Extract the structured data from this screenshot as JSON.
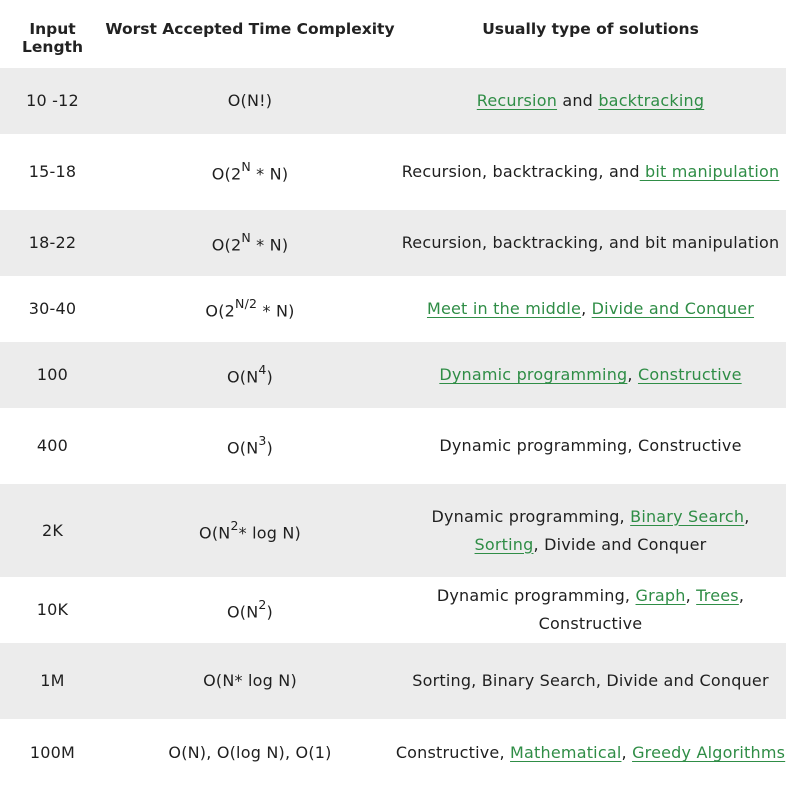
{
  "headers": [
    "Input Length",
    "Worst Accepted Time Complexity",
    "Usually type of solutions"
  ],
  "rows": [
    {
      "len": "10 -12",
      "cx": {
        "base": "O(N!)",
        "sup": "",
        "tail": ""
      },
      "sol": [
        {
          "t": "Recursion",
          "link": true
        },
        {
          "t": " and ",
          "link": false
        },
        {
          "t": "backtracking",
          "link": true
        }
      ]
    },
    {
      "len": "15-18",
      "cx": {
        "base": "O(2",
        "sup": "N",
        "tail": " * N)"
      },
      "sol": [
        {
          "t": "Recursion, backtracking, and",
          "link": false
        },
        {
          "t": " bit manipulation",
          "link": true
        }
      ]
    },
    {
      "len": "18-22",
      "cx": {
        "base": "O(2",
        "sup": "N",
        "tail": " * N)"
      },
      "sol": [
        {
          "t": "Recursion, backtracking, and bit manipulation",
          "link": false
        }
      ]
    },
    {
      "len": "30-40",
      "cx": {
        "base": "O(2",
        "sup": "N/2",
        "tail": " * N)"
      },
      "sol": [
        {
          "t": "Meet in the middle",
          "link": true
        },
        {
          "t": ", ",
          "link": false
        },
        {
          "t": "Divide and Conquer",
          "link": true
        }
      ]
    },
    {
      "len": "100",
      "cx": {
        "base": "O(N",
        "sup": "4",
        "tail": ")"
      },
      "sol": [
        {
          "t": "Dynamic programming",
          "link": true
        },
        {
          "t": ", ",
          "link": false
        },
        {
          "t": "Constructive",
          "link": true
        }
      ]
    },
    {
      "len": "400",
      "cx": {
        "base": "O(N",
        "sup": "3",
        "tail": ")"
      },
      "sol": [
        {
          "t": "Dynamic programming, Constructive",
          "link": false
        }
      ]
    },
    {
      "len": "2K",
      "cx": {
        "base": "O(N",
        "sup": "2",
        "tail": "* log N)"
      },
      "sol": [
        {
          "t": "Dynamic programming, ",
          "link": false
        },
        {
          "t": "Binary Search",
          "link": true
        },
        {
          "t": ", ",
          "link": false
        },
        {
          "t": "Sorting",
          "link": true
        },
        {
          "t": ", Divide and Conquer",
          "link": false
        }
      ]
    },
    {
      "len": "10K",
      "cx": {
        "base": "O(N",
        "sup": "2",
        "tail": ")"
      },
      "sol": [
        {
          "t": "Dynamic programming, ",
          "link": false
        },
        {
          "t": "Graph",
          "link": true
        },
        {
          "t": ", ",
          "link": false
        },
        {
          "t": "Trees",
          "link": true
        },
        {
          "t": ", Constructive",
          "link": false
        }
      ]
    },
    {
      "len": "1M",
      "cx": {
        "base": "O(N* log N)",
        "sup": "",
        "tail": ""
      },
      "sol": [
        {
          "t": "Sorting, Binary Search, Divide and Conquer",
          "link": false
        }
      ]
    },
    {
      "len": "100M",
      "cx": {
        "base": "O(N), O(log N), O(1)",
        "sup": "",
        "tail": ""
      },
      "sol": [
        {
          "t": "Constructive, ",
          "link": false
        },
        {
          "t": "Mathematical",
          "link": true
        },
        {
          "t": ", ",
          "link": false
        },
        {
          "t": "Greedy Algorithms",
          "link": true
        }
      ]
    }
  ]
}
